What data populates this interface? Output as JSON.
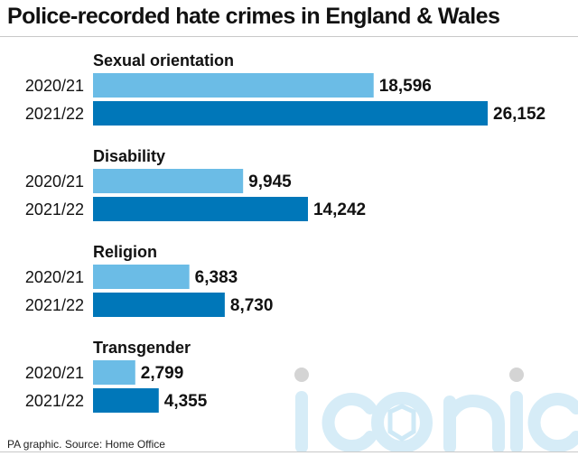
{
  "title": "Police-recorded hate crimes in England & Wales",
  "source": "PA graphic. Source: Home Office",
  "watermark": "iconic",
  "colors": {
    "series_2020": "#6bbce6",
    "series_2021": "#0077b9",
    "text": "#111111"
  },
  "chart_data": {
    "type": "bar",
    "orientation": "horizontal",
    "title": "Police-recorded hate crimes in England & Wales",
    "xlabel": "",
    "ylabel": "",
    "xlim": [
      0,
      26152
    ],
    "grid": false,
    "categories": [
      "Sexual orientation",
      "Disability",
      "Religion",
      "Transgender"
    ],
    "series": [
      {
        "name": "2020/21",
        "color": "#6bbce6",
        "values": [
          18596,
          9945,
          6383,
          2799
        ],
        "labels": [
          "18,596",
          "9,945",
          "6,383",
          "2,799"
        ]
      },
      {
        "name": "2021/22",
        "color": "#0077b9",
        "values": [
          26152,
          14242,
          8730,
          4355
        ],
        "labels": [
          "26,152",
          "14,242",
          "8,730",
          "4,355"
        ]
      }
    ]
  }
}
